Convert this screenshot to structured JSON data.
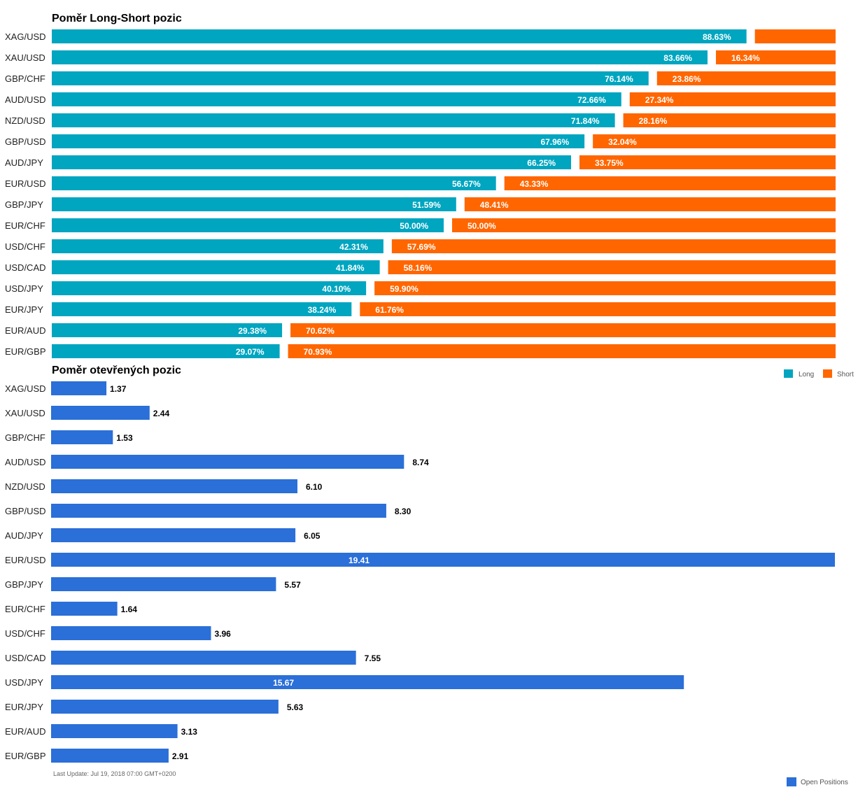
{
  "chart_data": [
    {
      "type": "bar",
      "stacked": true,
      "orientation": "horizontal",
      "title": "Poměr Long-Short pozic",
      "categories": [
        "XAG/USD",
        "XAU/USD",
        "GBP/CHF",
        "AUD/USD",
        "NZD/USD",
        "GBP/USD",
        "AUD/JPY",
        "EUR/USD",
        "GBP/JPY",
        "EUR/CHF",
        "USD/CHF",
        "USD/CAD",
        "USD/JPY",
        "EUR/JPY",
        "EUR/AUD",
        "EUR/GBP"
      ],
      "series": [
        {
          "name": "Long",
          "color": "#00A5C0",
          "values": [
            88.63,
            83.66,
            76.14,
            72.66,
            71.84,
            67.96,
            66.25,
            56.67,
            51.59,
            50.0,
            42.31,
            41.84,
            40.1,
            38.24,
            29.38,
            29.07
          ],
          "labels": [
            "88.63%",
            "83.66%",
            "76.14%",
            "72.66%",
            "71.84%",
            "67.96%",
            "66.25%",
            "56.67%",
            "51.59%",
            "50.00%",
            "42.31%",
            "41.84%",
            "40.10%",
            "38.24%",
            "29.38%",
            "29.07%"
          ]
        },
        {
          "name": "Short",
          "color": "#FF6600",
          "values": [
            11.37,
            16.34,
            23.86,
            27.34,
            28.16,
            32.04,
            33.75,
            43.33,
            48.41,
            50.0,
            57.69,
            58.16,
            59.9,
            61.76,
            70.62,
            70.93
          ],
          "labels": [
            "",
            "16.34%",
            "23.86%",
            "27.34%",
            "28.16%",
            "32.04%",
            "33.75%",
            "43.33%",
            "48.41%",
            "50.00%",
            "57.69%",
            "58.16%",
            "59.90%",
            "61.76%",
            "70.62%",
            "70.93%"
          ]
        }
      ],
      "xlim": [
        0,
        100
      ],
      "legend": "bottom-right",
      "grid": false
    },
    {
      "type": "bar",
      "orientation": "horizontal",
      "title": "Poměr otevřených pozic",
      "categories": [
        "XAG/USD",
        "XAU/USD",
        "GBP/CHF",
        "AUD/USD",
        "NZD/USD",
        "GBP/USD",
        "AUD/JPY",
        "EUR/USD",
        "GBP/JPY",
        "EUR/CHF",
        "USD/CHF",
        "USD/CAD",
        "USD/JPY",
        "EUR/JPY",
        "EUR/AUD",
        "EUR/GBP"
      ],
      "series": [
        {
          "name": "Open Positions",
          "color": "#2B6FD8",
          "values": [
            1.37,
            2.44,
            1.53,
            8.74,
            6.1,
            8.3,
            6.05,
            19.41,
            5.57,
            1.64,
            3.96,
            7.55,
            15.67,
            5.63,
            3.13,
            2.91
          ],
          "labels": [
            "1.37",
            "2.44",
            "1.53",
            "8.74",
            "6.10",
            "8.30",
            "6.05",
            "19.41",
            "5.57",
            "1.64",
            "3.96",
            "7.55",
            "15.67",
            "5.63",
            "3.13",
            "2.91"
          ]
        }
      ],
      "legend": "bottom-right",
      "grid": false
    }
  ],
  "footer": {
    "last_update": "Last Update: Jul 19, 2018 07:00 GMT+0200"
  }
}
